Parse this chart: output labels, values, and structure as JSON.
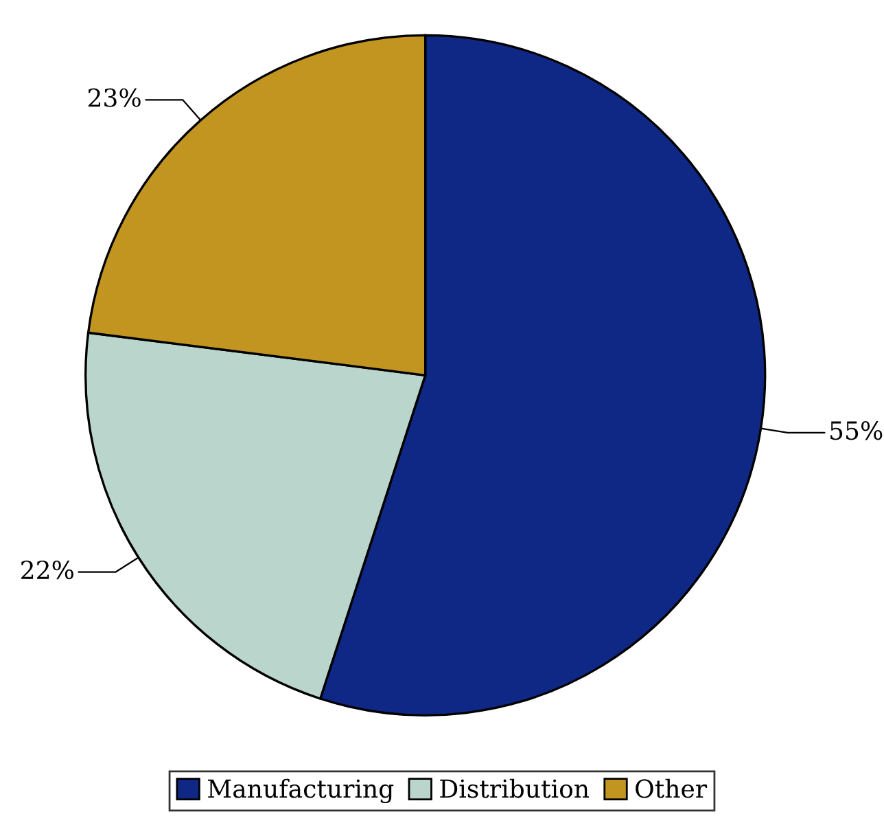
{
  "chart_data": {
    "type": "pie",
    "categories": [
      "Manufacturing",
      "Distribution",
      "Other"
    ],
    "values": [
      55,
      22,
      23
    ],
    "colors": [
      "#0f2886",
      "#bad5cb",
      "#c29521"
    ],
    "value_labels": [
      "55%",
      "22%",
      "23%"
    ],
    "legend": "bottom"
  }
}
